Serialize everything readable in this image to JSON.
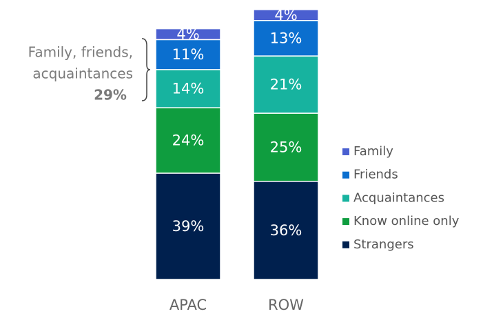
{
  "chart_data": {
    "type": "stacked-bar",
    "categories": [
      "APAC",
      "ROW"
    ],
    "series": [
      {
        "name": "Strangers",
        "color": "#00204e",
        "values": [
          39,
          36
        ],
        "value_labels": [
          "39%",
          "36%"
        ]
      },
      {
        "name": "Know online only",
        "color": "#0f9d3f",
        "values": [
          24,
          25
        ],
        "value_labels": [
          "24%",
          "25%"
        ]
      },
      {
        "name": "Acquaintances",
        "color": "#17b39f",
        "values": [
          14,
          21
        ],
        "value_labels": [
          "14%",
          "21%"
        ]
      },
      {
        "name": "Friends",
        "color": "#0b6fcf",
        "values": [
          11,
          13
        ],
        "value_labels": [
          "11%",
          "13%"
        ]
      },
      {
        "name": "Family",
        "color": "#4a5fd0",
        "values": [
          4,
          4
        ],
        "value_labels": [
          "4%",
          "4%"
        ]
      }
    ],
    "annotation": {
      "lines": [
        "Family, friends,",
        "acquaintances"
      ],
      "emphasis": "29%"
    }
  }
}
